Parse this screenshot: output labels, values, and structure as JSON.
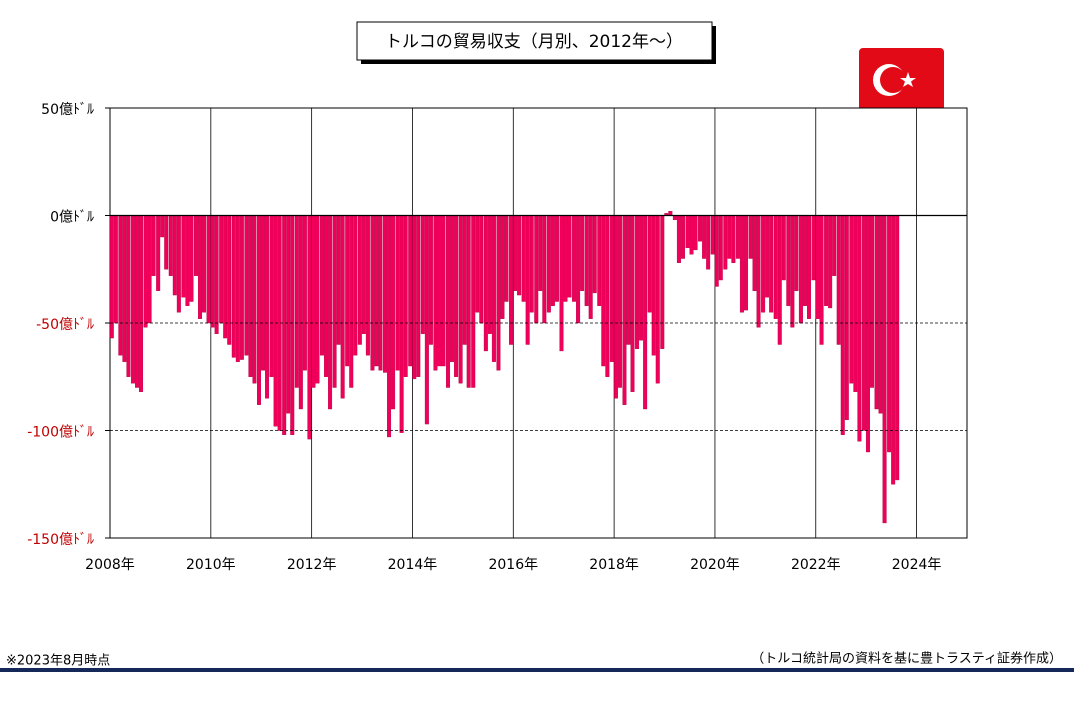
{
  "chart_data": {
    "type": "bar",
    "title": "トルコの貿易収支（月別、2012年～）",
    "note": "※2023年8月時点",
    "source": "（トルコ統計局の資料を基に豊トラスティ証券作成）",
    "color": "#f0005a",
    "grid": true,
    "xlim": [
      2008,
      2025
    ],
    "xticks": [
      {
        "value": 2008,
        "label": "2008年"
      },
      {
        "value": 2010,
        "label": "2010年"
      },
      {
        "value": 2012,
        "label": "2012年"
      },
      {
        "value": 2014,
        "label": "2014年"
      },
      {
        "value": 2016,
        "label": "2016年"
      },
      {
        "value": 2018,
        "label": "2018年"
      },
      {
        "value": 2020,
        "label": "2020年"
      },
      {
        "value": 2022,
        "label": "2022年"
      },
      {
        "value": 2024,
        "label": "2024年"
      }
    ],
    "ylim": [
      -150,
      50
    ],
    "yticks": [
      {
        "value": 50,
        "label": "50億ﾄﾞﾙ"
      },
      {
        "value": 0,
        "label": "0億ﾄﾞﾙ"
      },
      {
        "value": -50,
        "label": "-50億ﾄﾞﾙ"
      },
      {
        "value": -100,
        "label": "-100億ﾄﾞﾙ"
      },
      {
        "value": -150,
        "label": "-150億ﾄﾞﾙ"
      }
    ],
    "x": [
      2008.0,
      2008.08,
      2008.17,
      2008.25,
      2008.33,
      2008.42,
      2008.5,
      2008.58,
      2008.67,
      2008.75,
      2008.83,
      2008.92,
      2009.0,
      2009.08,
      2009.17,
      2009.25,
      2009.33,
      2009.42,
      2009.5,
      2009.58,
      2009.67,
      2009.75,
      2009.83,
      2009.92,
      2010.0,
      2010.08,
      2010.17,
      2010.25,
      2010.33,
      2010.42,
      2010.5,
      2010.58,
      2010.67,
      2010.75,
      2010.83,
      2010.92,
      2011.0,
      2011.08,
      2011.17,
      2011.25,
      2011.33,
      2011.42,
      2011.5,
      2011.58,
      2011.67,
      2011.75,
      2011.83,
      2011.92,
      2012.0,
      2012.08,
      2012.17,
      2012.25,
      2012.33,
      2012.42,
      2012.5,
      2012.58,
      2012.67,
      2012.75,
      2012.83,
      2012.92,
      2013.0,
      2013.08,
      2013.17,
      2013.25,
      2013.33,
      2013.42,
      2013.5,
      2013.58,
      2013.67,
      2013.75,
      2013.83,
      2013.92,
      2014.0,
      2014.08,
      2014.17,
      2014.25,
      2014.33,
      2014.42,
      2014.5,
      2014.58,
      2014.67,
      2014.75,
      2014.83,
      2014.92,
      2015.0,
      2015.08,
      2015.17,
      2015.25,
      2015.33,
      2015.42,
      2015.5,
      2015.58,
      2015.67,
      2015.75,
      2015.83,
      2015.92,
      2016.0,
      2016.08,
      2016.17,
      2016.25,
      2016.33,
      2016.42,
      2016.5,
      2016.58,
      2016.67,
      2016.75,
      2016.83,
      2016.92,
      2017.0,
      2017.08,
      2017.17,
      2017.25,
      2017.33,
      2017.42,
      2017.5,
      2017.58,
      2017.67,
      2017.75,
      2017.83,
      2017.92,
      2018.0,
      2018.08,
      2018.17,
      2018.25,
      2018.33,
      2018.42,
      2018.5,
      2018.58,
      2018.67,
      2018.75,
      2018.83,
      2018.92,
      2019.0,
      2019.08,
      2019.17,
      2019.25,
      2019.33,
      2019.42,
      2019.5,
      2019.58,
      2019.67,
      2019.75,
      2019.83,
      2019.92,
      2020.0,
      2020.08,
      2020.17,
      2020.25,
      2020.33,
      2020.42,
      2020.5,
      2020.58,
      2020.67,
      2020.75,
      2020.83,
      2020.92,
      2021.0,
      2021.08,
      2021.17,
      2021.25,
      2021.33,
      2021.42,
      2021.5,
      2021.58,
      2021.67,
      2021.75,
      2021.83,
      2021.92,
      2022.0,
      2022.08,
      2022.17,
      2022.25,
      2022.33,
      2022.42,
      2022.5,
      2022.58,
      2022.67,
      2022.75,
      2022.83,
      2022.92,
      2023.0,
      2023.08,
      2023.17,
      2023.25,
      2023.33,
      2023.42,
      2023.5,
      2023.58
    ],
    "values": [
      -57,
      -50,
      -65,
      -68,
      -75,
      -78,
      -80,
      -82,
      -52,
      -50,
      -28,
      -35,
      -10,
      -25,
      -28,
      -37,
      -45,
      -38,
      -42,
      -40,
      -28,
      -48,
      -45,
      -50,
      -52,
      -55,
      -50,
      -57,
      -60,
      -66,
      -68,
      -67,
      -65,
      -75,
      -78,
      -88,
      -72,
      -85,
      -75,
      -98,
      -100,
      -102,
      -92,
      -102,
      -80,
      -90,
      -72,
      -104,
      -80,
      -78,
      -65,
      -75,
      -90,
      -80,
      -60,
      -85,
      -70,
      -80,
      -65,
      -60,
      -55,
      -65,
      -72,
      -70,
      -72,
      -73,
      -103,
      -90,
      -72,
      -101,
      -75,
      -70,
      -76,
      -75,
      -55,
      -97,
      -60,
      -72,
      -70,
      -70,
      -80,
      -68,
      -75,
      -78,
      -60,
      -80,
      -80,
      -45,
      -50,
      -63,
      -55,
      -68,
      -72,
      -48,
      -40,
      -60,
      -35,
      -37,
      -40,
      -60,
      -45,
      -50,
      -35,
      -50,
      -45,
      -42,
      -40,
      -63,
      -40,
      -38,
      -40,
      -50,
      -35,
      -42,
      -48,
      -36,
      -42,
      -70,
      -75,
      -68,
      -85,
      -80,
      -88,
      -60,
      -82,
      -62,
      -58,
      -90,
      -45,
      -65,
      -78,
      -62,
      1,
      2,
      -2,
      -22,
      -20,
      -15,
      -18,
      -16,
      -12,
      -20,
      -25,
      -18,
      -33,
      -30,
      -25,
      -20,
      -22,
      -20,
      -45,
      -44,
      -20,
      -35,
      -52,
      -45,
      -38,
      -45,
      -48,
      -60,
      -30,
      -42,
      -52,
      -35,
      -50,
      -42,
      -48,
      -30,
      -48,
      -60,
      -42,
      -43,
      -28,
      -60,
      -102,
      -95,
      -78,
      -82,
      -105,
      -100,
      -110,
      -80,
      -90,
      -92,
      -143,
      -110,
      -125,
      -123
    ]
  }
}
